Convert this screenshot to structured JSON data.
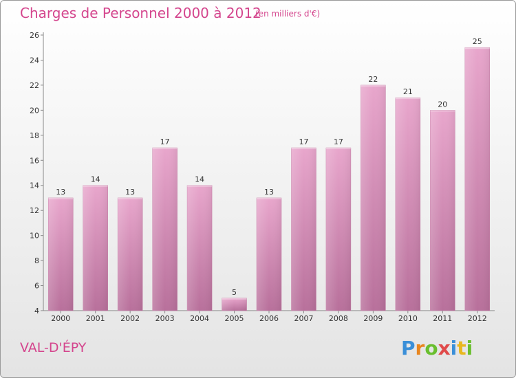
{
  "header": {
    "title": "Charges de Personnel 2000 à 2012",
    "subtitle": "(en milliers d'€)"
  },
  "footer": {
    "commune": "VAL-D'ÉPY",
    "logo_text": "Proxiti",
    "logo_colors": [
      "#3a8fd8",
      "#e8861f",
      "#6abf2f",
      "#e04a4a",
      "#3a8fd8",
      "#e8b81f",
      "#6abf2f"
    ]
  },
  "chart_data": {
    "type": "bar",
    "categories": [
      "2000",
      "2001",
      "2002",
      "2003",
      "2004",
      "2005",
      "2006",
      "2007",
      "2008",
      "2009",
      "2010",
      "2011",
      "2012"
    ],
    "values": [
      13,
      14,
      13,
      17,
      14,
      5,
      13,
      17,
      17,
      22,
      21,
      20,
      25
    ],
    "ylim": [
      4,
      26
    ],
    "yticks": [
      4,
      6,
      8,
      10,
      12,
      14,
      16,
      18,
      20,
      22,
      24,
      26
    ],
    "bar_color": "#d986b4",
    "grid": false
  }
}
